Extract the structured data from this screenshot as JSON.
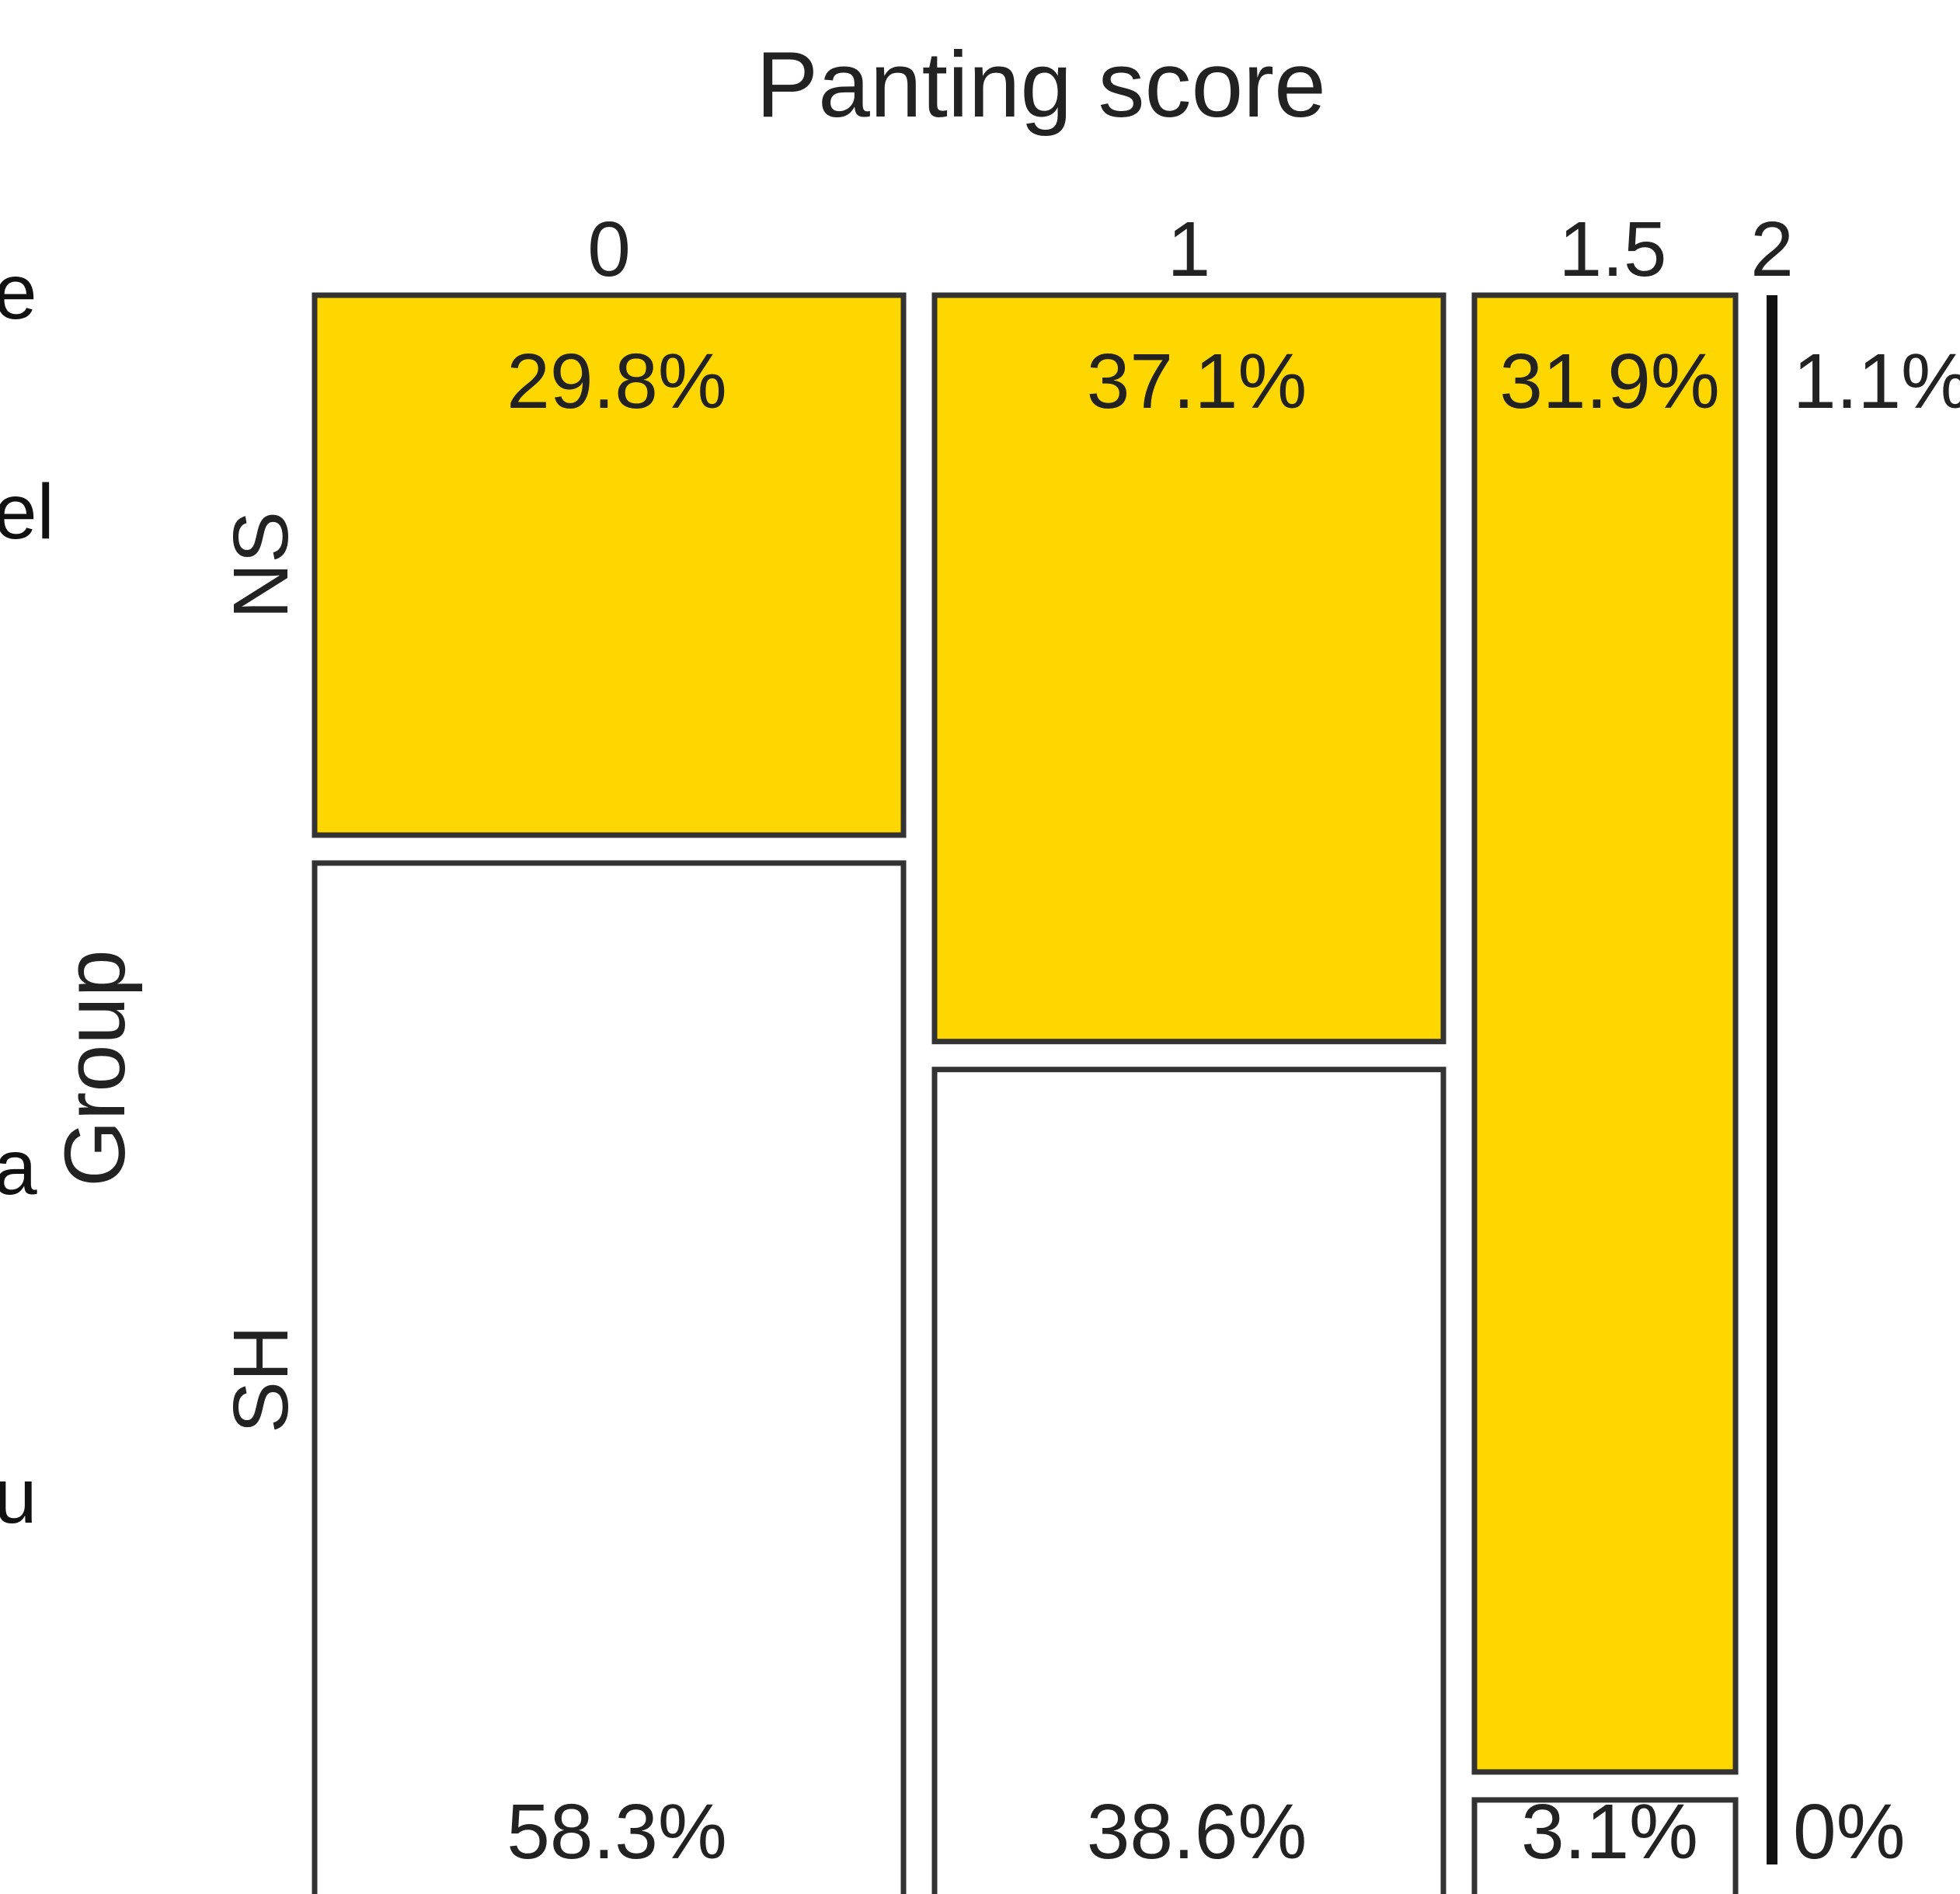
{
  "left_edge_text": [
    "e",
    "el",
    "a",
    "u"
  ],
  "chart_data": {
    "type": "mosaic",
    "title": "Panting score",
    "xlabel": "Panting score",
    "ylabel": "Group",
    "categories": [
      "0",
      "1",
      "1.5",
      "2"
    ],
    "column_widths": [
      0.309,
      0.267,
      0.137,
      0.0065
    ],
    "groups": [
      "NS",
      "SH"
    ],
    "series": [
      {
        "name": "NS",
        "values": [
          29.8,
          37.1,
          31.9,
          1.1
        ],
        "labels": [
          "29.8%",
          "37.1%",
          "31.9%",
          "1.1%"
        ],
        "fill": "#FFD700"
      },
      {
        "name": "SH",
        "values": [
          58.3,
          38.6,
          3.1,
          0
        ],
        "labels": [
          "58.3%",
          "38.6%",
          "3.1%",
          "0%"
        ],
        "fill": "#FFFFFF"
      }
    ],
    "ns_share_within_column": [
      0.34,
      0.47,
      0.93,
      1.0
    ]
  }
}
